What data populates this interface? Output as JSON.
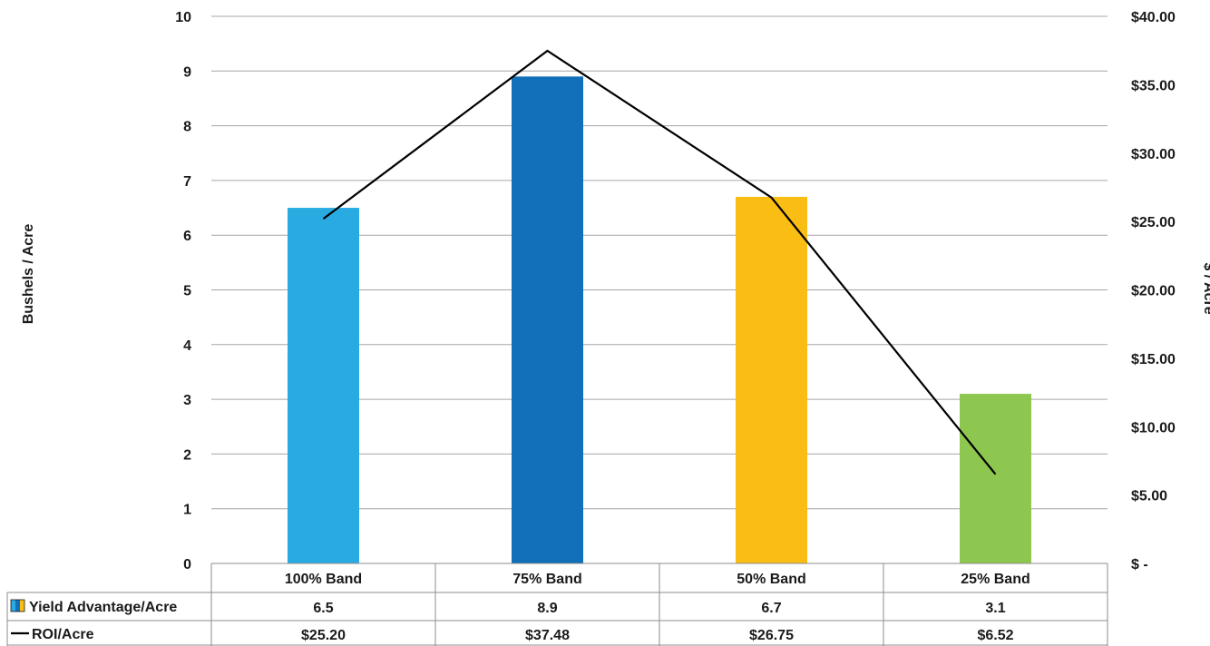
{
  "chart_data": {
    "type": "bar",
    "categories": [
      "100% Band",
      "75% Band",
      "50% Band",
      "25% Band"
    ],
    "bar_colors": [
      "#29abe2",
      "#1170b9",
      "#f9bd14",
      "#8dc74f"
    ],
    "series": [
      {
        "name": "Yield Advantage/Acre",
        "type": "bar",
        "axis": "left",
        "values": [
          6.5,
          8.9,
          6.7,
          3.1
        ],
        "table_labels": [
          "6.5",
          "8.9",
          "6.7",
          "3.1"
        ]
      },
      {
        "name": "ROI/Acre",
        "type": "line",
        "axis": "right",
        "color": "#000000",
        "values": [
          25.2,
          37.48,
          26.75,
          6.52
        ],
        "table_labels": [
          "$25.20",
          "$37.48",
          "$26.75",
          "$6.52"
        ]
      }
    ],
    "ylabel": "Bushels / Acre",
    "y2label": "$ / Acre",
    "ylim": [
      0,
      10
    ],
    "y2lim": [
      0,
      40
    ],
    "yticks": [
      "0",
      "1",
      "2",
      "3",
      "4",
      "5",
      "6",
      "7",
      "8",
      "9",
      "10"
    ],
    "y2ticks": [
      "$ -",
      "$5.00",
      "$10.00",
      "$15.00",
      "$20.00",
      "$25.00",
      "$30.00",
      "$35.00",
      "$40.00"
    ],
    "grid": true,
    "legend": "data-table-bottom",
    "gridline_color": "#a6a6a6",
    "table_border_color": "#8c8c8c"
  }
}
